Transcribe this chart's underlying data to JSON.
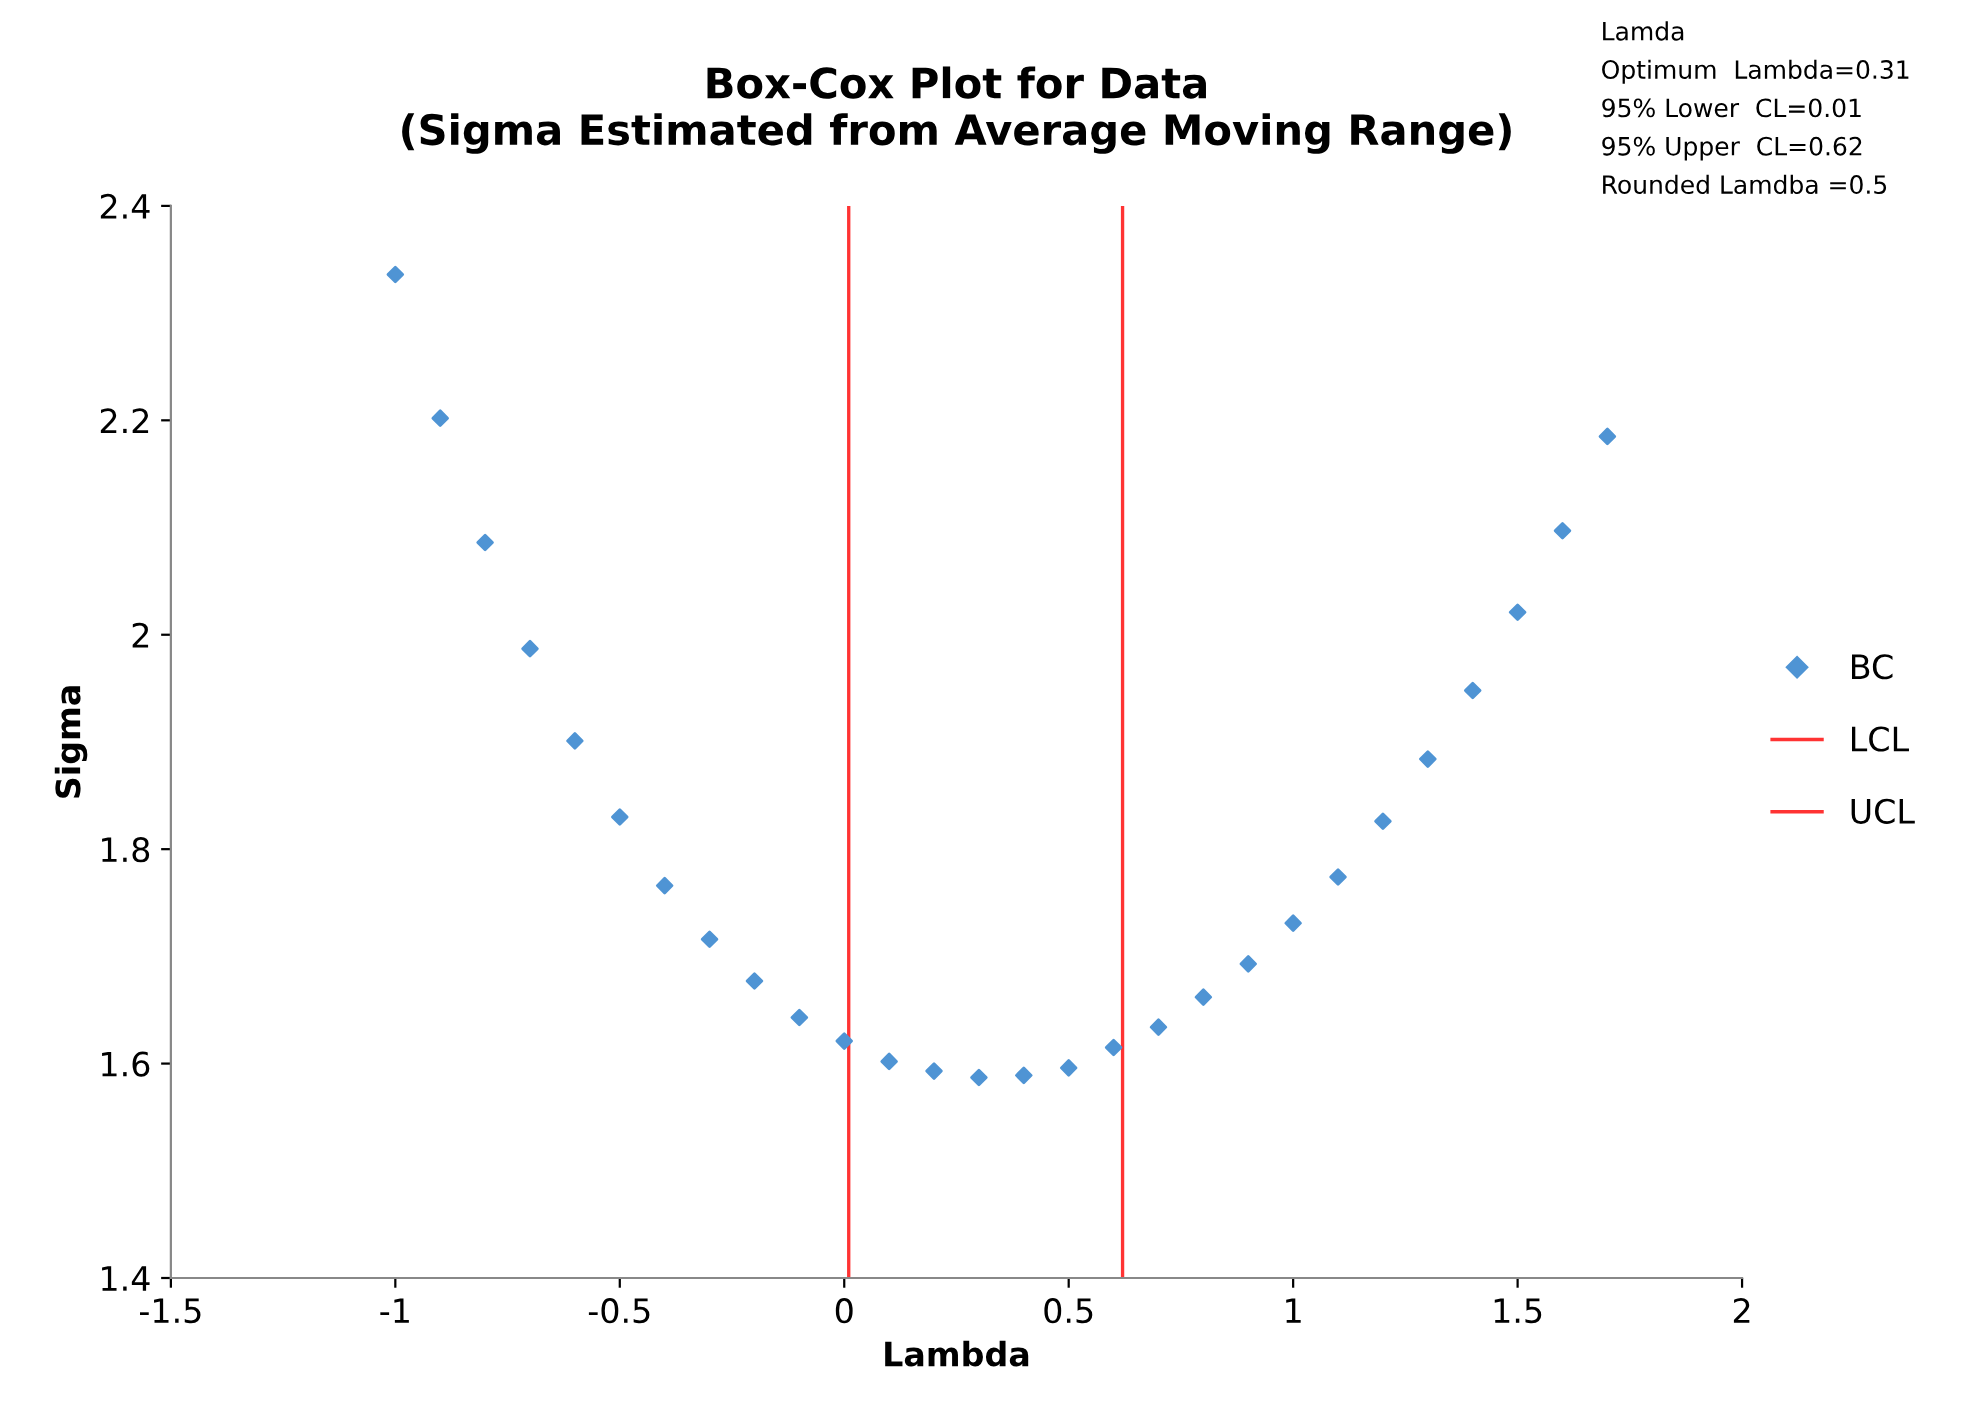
{
  "chart_data": {
    "type": "scatter",
    "title": "Box-Cox Plot for Data\n(Sigma Estimated from Average Moving Range)",
    "xlabel": "Lambda",
    "ylabel": "Sigma",
    "annotations": [
      "Lamda",
      "Optimum  Lambda=0.31",
      "95% Lower  CL=0.01",
      "95% Upper  CL=0.62",
      "Rounded Lamdba =0.5"
    ],
    "xlim": [
      -1.5,
      2
    ],
    "xticks": [
      -1.5,
      -1,
      -0.5,
      0,
      0.5,
      1,
      1.5,
      2
    ],
    "ylim": [
      1.4,
      2.4
    ],
    "yticks": [
      1.4,
      1.6,
      1.8,
      2,
      2.2,
      2.4
    ],
    "grid": false,
    "legend": "right",
    "series": [
      {
        "name": "BC",
        "marker": "diamond",
        "color": "#4f94d4",
        "x": [
          -1,
          -0.9,
          -0.8,
          -0.7,
          -0.6,
          -0.5,
          -0.4,
          -0.3,
          -0.2,
          -0.1,
          0,
          0.1,
          0.2,
          0.3,
          0.4,
          0.5,
          0.6,
          0.7,
          0.8,
          0.9,
          1,
          1.1,
          1.2,
          1.3,
          1.4,
          1.5,
          1.6,
          1.7
        ],
        "values": [
          2.336,
          2.202,
          2.086,
          1.987,
          1.901,
          1.83,
          1.766,
          1.716,
          1.677,
          1.643,
          1.621,
          1.602,
          1.593,
          1.587,
          1.589,
          1.596,
          1.615,
          1.634,
          1.662,
          1.693,
          1.731,
          1.774,
          1.826,
          1.884,
          1.948,
          2.021,
          2.097,
          2.185
        ]
      },
      {
        "name": "LCL",
        "type": "line",
        "marker": "none",
        "color": "#ff3333",
        "x": [
          0.01,
          0.01
        ],
        "values": [
          1.4,
          2.4
        ]
      },
      {
        "name": "UCL",
        "type": "line",
        "marker": "none",
        "color": "#ff3333",
        "x": [
          0.62,
          0.62
        ],
        "values": [
          1.4,
          2.4
        ]
      }
    ]
  }
}
